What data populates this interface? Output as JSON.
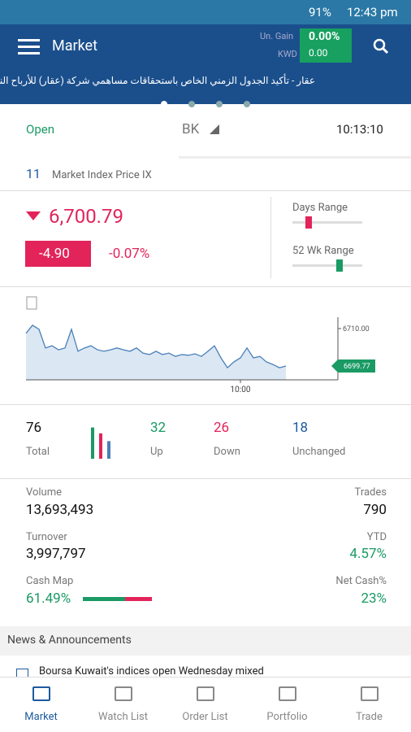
{
  "status_bar": {
    "battery": "91%",
    "time": "12:43 pm"
  },
  "app_bar": {
    "title": "Market",
    "gain_label": "Un. Gain",
    "currency": "KWD",
    "gain_percent": "0.00%",
    "gain_value": "0.00"
  },
  "ticker": "عقار - تأكيد الجدول الزمني الخاص باستحقاقات مساهمي شركة (عقار) للأرباح النقدية",
  "market_status": {
    "state": "Open",
    "exchange": "BK",
    "time": "10:13:10"
  },
  "index": {
    "id": "11",
    "name": "Market Index Price IX",
    "price": "6,700.79",
    "change": "-4.90",
    "change_percent": "-0.07%",
    "days_range_label": "Days Range",
    "week52_range_label": "52 Wk Range"
  },
  "chart_data": {
    "type": "line",
    "categories": [
      null,
      null,
      null,
      null,
      null,
      null,
      null,
      null,
      null,
      null,
      null,
      null,
      null,
      null,
      null,
      null,
      null,
      null,
      null,
      null,
      null,
      null,
      null,
      null,
      null,
      null,
      null,
      null,
      null,
      null,
      null,
      null,
      null,
      "10:00",
      null,
      null,
      null,
      null,
      null,
      null,
      null
    ],
    "values": [
      6708.7,
      6710.9,
      6709.8,
      6704.7,
      6705.3,
      6704.2,
      6704.7,
      6709.8,
      6703.8,
      6704.7,
      6705.3,
      6704.2,
      6703.8,
      6704.2,
      6704.7,
      6704.2,
      6703.8,
      6704.7,
      6703.3,
      6702.9,
      6703.8,
      6702.9,
      6703.3,
      6702.4,
      6702.9,
      6702.7,
      6703.1,
      6702.4,
      6703.8,
      6705.3,
      6702.0,
      6699.3,
      6700.9,
      6702.0,
      6704.7,
      6702.0,
      6702.4,
      6700.9,
      6700.2,
      6699.3,
      6699.77
    ],
    "last_label": "6699.77",
    "xlim": [
      0,
      48
    ],
    "ylim": [
      6696,
      6713.1
    ],
    "yticks": [
      {
        "value": 6710,
        "label": "6710.00"
      }
    ],
    "color": "#4a80b8"
  },
  "breadth": {
    "total": "76",
    "total_label": "Total",
    "up": "32",
    "up_label": "Up",
    "down": "26",
    "down_label": "Down",
    "unchanged": "18",
    "unchanged_label": "Unchanged"
  },
  "stats": {
    "volume_label": "Volume",
    "volume": "13,693,493",
    "trades_label": "Trades",
    "trades": "790",
    "turnover_label": "Turnover",
    "turnover": "3,997,797",
    "ytd_label": "YTD",
    "ytd": "4.57%",
    "cash_map_label": "Cash Map",
    "cash_map": "61.49%",
    "net_cash_label": "Net Cash%",
    "net_cash": "23%"
  },
  "news": {
    "header": "News & Announcements",
    "items": [
      "Boursa Kuwait's indices open Wednesday mixed"
    ]
  },
  "nav": [
    "Market",
    "Watch List",
    "Order List",
    "Portfolio",
    "Trade"
  ]
}
